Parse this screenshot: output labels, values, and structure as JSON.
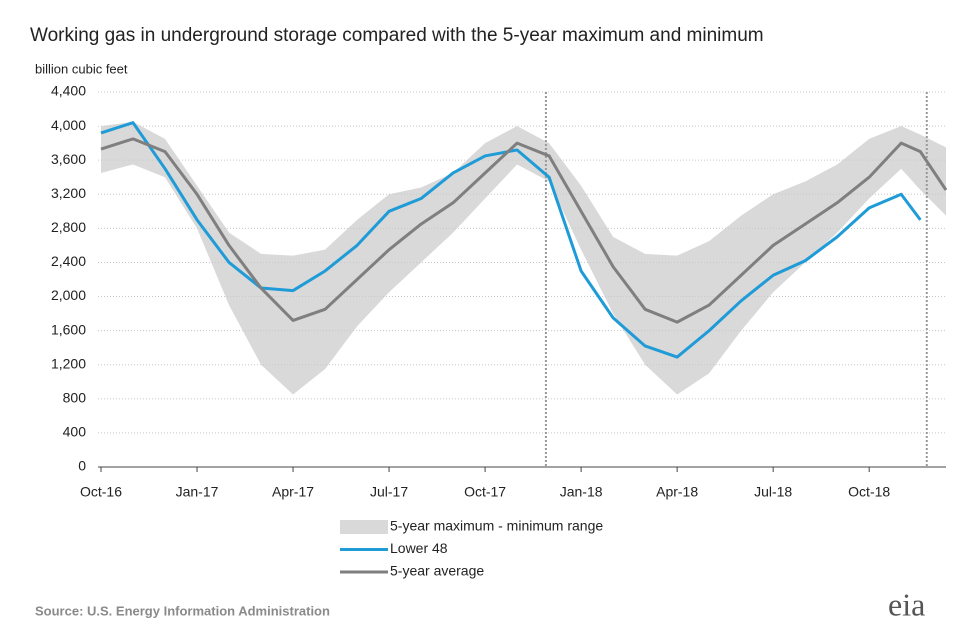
{
  "chart_data": {
    "type": "line",
    "title": "Working gas in underground  storage compared with the 5-year maximum  and minimum",
    "y_label": "billion cubic feet",
    "source": "Source:  U.S. Energy Information Administration",
    "logo": "eia",
    "x": [
      0,
      1,
      2,
      3,
      4,
      5,
      6,
      7,
      8,
      9,
      10,
      11,
      12,
      13,
      14,
      15,
      16,
      17,
      18,
      19,
      20,
      21,
      22,
      23,
      24,
      25,
      25.6,
      26.4
    ],
    "xlim": [
      0,
      26.4
    ],
    "xticks": [
      {
        "value": 0,
        "label": "Oct-16"
      },
      {
        "value": 3,
        "label": "Jan-17"
      },
      {
        "value": 6,
        "label": "Apr-17"
      },
      {
        "value": 9,
        "label": "Jul-17"
      },
      {
        "value": 12,
        "label": "Oct-17"
      },
      {
        "value": 15,
        "label": "Jan-18"
      },
      {
        "value": 18,
        "label": "Apr-18"
      },
      {
        "value": 21,
        "label": "Jul-18"
      },
      {
        "value": 24,
        "label": "Oct-18"
      }
    ],
    "ylim": [
      0,
      4400
    ],
    "yticks": [
      0,
      400,
      800,
      {
        "value": 1200,
        "label": "1,200"
      },
      {
        "value": 1600,
        "label": "1,600"
      },
      {
        "value": 2000,
        "label": "2,000"
      },
      {
        "value": 2400,
        "label": "2,400"
      },
      {
        "value": 2800,
        "label": "2,800"
      },
      {
        "value": 3200,
        "label": "3,200"
      },
      {
        "value": 3600,
        "label": "3,600"
      },
      {
        "value": 4000,
        "label": "4,000"
      },
      {
        "value": 4400,
        "label": "4,400"
      }
    ],
    "grid": true,
    "vlines": [
      13.9,
      25.8
    ],
    "series": [
      {
        "name": "5-year maximum - minimum range",
        "color": "#d9d9d9",
        "high": [
          4000,
          4050,
          3850,
          3300,
          2750,
          2500,
          2480,
          2550,
          2900,
          3200,
          3280,
          3450,
          3800,
          4000,
          3800,
          3300,
          2700,
          2500,
          2480,
          2650,
          2950,
          3200,
          3350,
          3550,
          3850,
          4000,
          3900,
          3750
        ],
        "low": [
          3450,
          3550,
          3400,
          2800,
          1900,
          1200,
          850,
          1150,
          1650,
          2050,
          2400,
          2750,
          3150,
          3550,
          3350,
          2550,
          1800,
          1200,
          850,
          1100,
          1600,
          2050,
          2400,
          2750,
          3150,
          3500,
          3250,
          2950
        ]
      },
      {
        "name": "Lower 48",
        "color": "#1f9bd7",
        "values": [
          3920,
          4040,
          3500,
          2900,
          2400,
          2100,
          2070,
          2300,
          2600,
          3000,
          3150,
          3450,
          3650,
          3720,
          3400,
          2300,
          1750,
          1420,
          1290,
          1600,
          1950,
          2250,
          2420,
          2700,
          3040,
          3200,
          2900,
          null
        ]
      },
      {
        "name": "5-year average",
        "color": "#7f7f7f",
        "values": [
          3730,
          3850,
          3700,
          3200,
          2600,
          2100,
          1720,
          1850,
          2200,
          2550,
          2850,
          3100,
          3450,
          3800,
          3650,
          3000,
          2350,
          1850,
          1700,
          1900,
          2250,
          2600,
          2850,
          3100,
          3400,
          3800,
          3700,
          3250
        ]
      }
    ]
  }
}
